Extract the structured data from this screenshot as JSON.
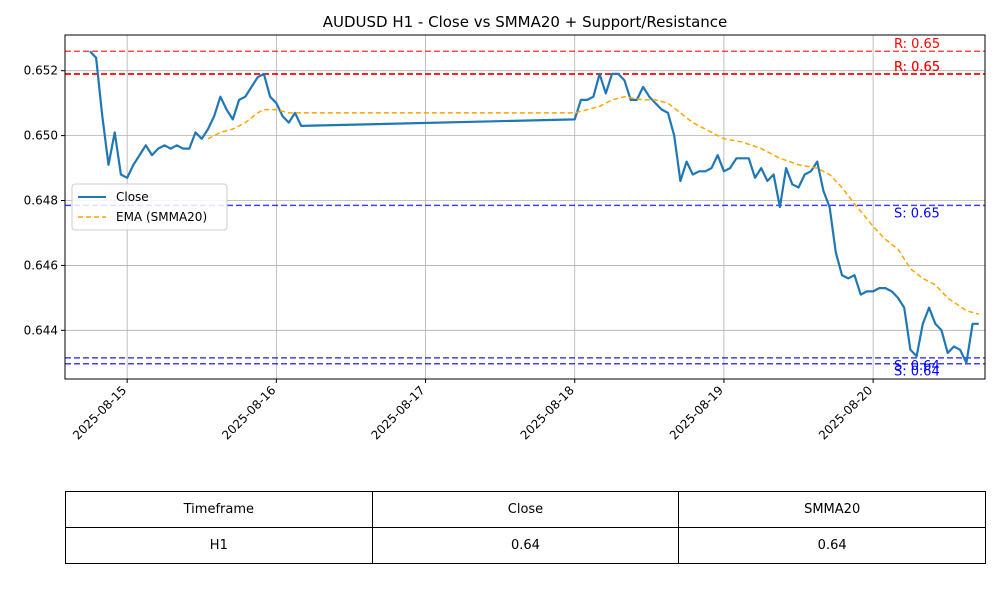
{
  "chart_data": {
    "type": "line",
    "title": "AUDUSD H1 - Close vs SMMA20 + Support/Resistance",
    "xlabel": "",
    "ylabel": "",
    "x_ticks": [
      "2025-08-15",
      "2025-08-16",
      "2025-08-17",
      "2025-08-18",
      "2025-08-19",
      "2025-08-20"
    ],
    "y_ticks": [
      "0.644",
      "0.646",
      "0.648",
      "0.650",
      "0.652"
    ],
    "xlim": [
      "2025-08-14 14:00",
      "2025-08-20 18:00"
    ],
    "ylim": [
      0.6425,
      0.6531
    ],
    "grid": true,
    "legend_placement": "center-left",
    "series": [
      {
        "name": "Close",
        "color": "#1f77b4",
        "style": "solid",
        "points": [
          [
            "2025-08-14 18:00",
            0.6526
          ],
          [
            "2025-08-14 19:00",
            0.6524
          ],
          [
            "2025-08-14 20:00",
            0.6506
          ],
          [
            "2025-08-14 21:00",
            0.6491
          ],
          [
            "2025-08-14 22:00",
            0.6501
          ],
          [
            "2025-08-14 23:00",
            0.6488
          ],
          [
            "2025-08-15 00:00",
            0.6487
          ],
          [
            "2025-08-15 01:00",
            0.6491
          ],
          [
            "2025-08-15 02:00",
            0.6494
          ],
          [
            "2025-08-15 03:00",
            0.6497
          ],
          [
            "2025-08-15 04:00",
            0.6494
          ],
          [
            "2025-08-15 05:00",
            0.6496
          ],
          [
            "2025-08-15 06:00",
            0.6497
          ],
          [
            "2025-08-15 07:00",
            0.6496
          ],
          [
            "2025-08-15 08:00",
            0.6497
          ],
          [
            "2025-08-15 09:00",
            0.6496
          ],
          [
            "2025-08-15 10:00",
            0.6496
          ],
          [
            "2025-08-15 11:00",
            0.6501
          ],
          [
            "2025-08-15 12:00",
            0.6499
          ],
          [
            "2025-08-15 13:00",
            0.6502
          ],
          [
            "2025-08-15 14:00",
            0.6506
          ],
          [
            "2025-08-15 15:00",
            0.6512
          ],
          [
            "2025-08-15 16:00",
            0.6508
          ],
          [
            "2025-08-15 17:00",
            0.6505
          ],
          [
            "2025-08-15 18:00",
            0.6511
          ],
          [
            "2025-08-15 19:00",
            0.6512
          ],
          [
            "2025-08-15 20:00",
            0.6515
          ],
          [
            "2025-08-15 21:00",
            0.6518
          ],
          [
            "2025-08-15 22:00",
            0.6519
          ],
          [
            "2025-08-15 23:00",
            0.6512
          ],
          [
            "2025-08-16 00:00",
            0.651
          ],
          [
            "2025-08-16 01:00",
            0.6506
          ],
          [
            "2025-08-16 02:00",
            0.6504
          ],
          [
            "2025-08-16 03:00",
            0.6507
          ],
          [
            "2025-08-16 04:00",
            0.6503
          ],
          [
            "2025-08-18 00:00",
            0.6505
          ],
          [
            "2025-08-18 01:00",
            0.6511
          ],
          [
            "2025-08-18 02:00",
            0.6511
          ],
          [
            "2025-08-18 03:00",
            0.6512
          ],
          [
            "2025-08-18 04:00",
            0.6519
          ],
          [
            "2025-08-18 05:00",
            0.6513
          ],
          [
            "2025-08-18 06:00",
            0.6519
          ],
          [
            "2025-08-18 07:00",
            0.6519
          ],
          [
            "2025-08-18 08:00",
            0.6517
          ],
          [
            "2025-08-18 09:00",
            0.6511
          ],
          [
            "2025-08-18 10:00",
            0.6511
          ],
          [
            "2025-08-18 11:00",
            0.6515
          ],
          [
            "2025-08-18 12:00",
            0.6512
          ],
          [
            "2025-08-18 13:00",
            0.651
          ],
          [
            "2025-08-18 14:00",
            0.6508
          ],
          [
            "2025-08-18 15:00",
            0.6507
          ],
          [
            "2025-08-18 16:00",
            0.65
          ],
          [
            "2025-08-18 17:00",
            0.6486
          ],
          [
            "2025-08-18 18:00",
            0.6492
          ],
          [
            "2025-08-18 19:00",
            0.6488
          ],
          [
            "2025-08-18 20:00",
            0.6489
          ],
          [
            "2025-08-18 21:00",
            0.6489
          ],
          [
            "2025-08-18 22:00",
            0.649
          ],
          [
            "2025-08-18 23:00",
            0.6494
          ],
          [
            "2025-08-19 00:00",
            0.6489
          ],
          [
            "2025-08-19 01:00",
            0.649
          ],
          [
            "2025-08-19 02:00",
            0.6493
          ],
          [
            "2025-08-19 03:00",
            0.6493
          ],
          [
            "2025-08-19 04:00",
            0.6493
          ],
          [
            "2025-08-19 05:00",
            0.6487
          ],
          [
            "2025-08-19 06:00",
            0.649
          ],
          [
            "2025-08-19 07:00",
            0.6486
          ],
          [
            "2025-08-19 08:00",
            0.6488
          ],
          [
            "2025-08-19 09:00",
            0.6478
          ],
          [
            "2025-08-19 10:00",
            0.649
          ],
          [
            "2025-08-19 11:00",
            0.6485
          ],
          [
            "2025-08-19 12:00",
            0.6484
          ],
          [
            "2025-08-19 13:00",
            0.6488
          ],
          [
            "2025-08-19 14:00",
            0.6489
          ],
          [
            "2025-08-19 15:00",
            0.6492
          ],
          [
            "2025-08-19 16:00",
            0.6483
          ],
          [
            "2025-08-19 17:00",
            0.6478
          ],
          [
            "2025-08-19 18:00",
            0.6464
          ],
          [
            "2025-08-19 19:00",
            0.6457
          ],
          [
            "2025-08-19 20:00",
            0.6456
          ],
          [
            "2025-08-19 21:00",
            0.6457
          ],
          [
            "2025-08-19 22:00",
            0.6451
          ],
          [
            "2025-08-19 23:00",
            0.6452
          ],
          [
            "2025-08-20 00:00",
            0.6452
          ],
          [
            "2025-08-20 01:00",
            0.6453
          ],
          [
            "2025-08-20 02:00",
            0.6453
          ],
          [
            "2025-08-20 03:00",
            0.6452
          ],
          [
            "2025-08-20 04:00",
            0.645
          ],
          [
            "2025-08-20 05:00",
            0.6447
          ],
          [
            "2025-08-20 06:00",
            0.6434
          ],
          [
            "2025-08-20 07:00",
            0.6432
          ],
          [
            "2025-08-20 08:00",
            0.6442
          ],
          [
            "2025-08-20 09:00",
            0.6447
          ],
          [
            "2025-08-20 10:00",
            0.6442
          ],
          [
            "2025-08-20 11:00",
            0.644
          ],
          [
            "2025-08-20 12:00",
            0.6433
          ],
          [
            "2025-08-20 13:00",
            0.6435
          ],
          [
            "2025-08-20 14:00",
            0.6434
          ],
          [
            "2025-08-20 15:00",
            0.643
          ],
          [
            "2025-08-20 16:00",
            0.6442
          ],
          [
            "2025-08-20 17:00",
            0.6442
          ]
        ]
      },
      {
        "name": "EMA (SMMA20)",
        "color": "#ffa500",
        "style": "dashed",
        "points": [
          [
            "2025-08-15 13:00",
            0.6499
          ],
          [
            "2025-08-15 14:00",
            0.65
          ],
          [
            "2025-08-15 15:00",
            0.6501
          ],
          [
            "2025-08-15 17:00",
            0.6502
          ],
          [
            "2025-08-15 19:00",
            0.6504
          ],
          [
            "2025-08-15 21:00",
            0.6507
          ],
          [
            "2025-08-15 22:00",
            0.6508
          ],
          [
            "2025-08-16 00:00",
            0.6508
          ],
          [
            "2025-08-16 02:00",
            0.6507
          ],
          [
            "2025-08-16 04:00",
            0.6507
          ],
          [
            "2025-08-18 00:00",
            0.6507
          ],
          [
            "2025-08-18 02:00",
            0.6508
          ],
          [
            "2025-08-18 04:00",
            0.6509
          ],
          [
            "2025-08-18 06:00",
            0.6511
          ],
          [
            "2025-08-18 08:00",
            0.6512
          ],
          [
            "2025-08-18 11:00",
            0.6511
          ],
          [
            "2025-08-18 13:00",
            0.6511
          ],
          [
            "2025-08-18 15:00",
            0.651
          ],
          [
            "2025-08-18 17:00",
            0.6507
          ],
          [
            "2025-08-18 19:00",
            0.6504
          ],
          [
            "2025-08-18 21:00",
            0.6502
          ],
          [
            "2025-08-19 00:00",
            0.6499
          ],
          [
            "2025-08-19 03:00",
            0.6498
          ],
          [
            "2025-08-19 06:00",
            0.6496
          ],
          [
            "2025-08-19 09:00",
            0.6493
          ],
          [
            "2025-08-19 12:00",
            0.6491
          ],
          [
            "2025-08-19 15:00",
            0.649
          ],
          [
            "2025-08-19 17:00",
            0.6488
          ],
          [
            "2025-08-19 19:00",
            0.6484
          ],
          [
            "2025-08-19 21:00",
            0.6479
          ],
          [
            "2025-08-20 00:00",
            0.6472
          ],
          [
            "2025-08-20 02:00",
            0.6468
          ],
          [
            "2025-08-20 04:00",
            0.6465
          ],
          [
            "2025-08-20 06:00",
            0.6459
          ],
          [
            "2025-08-20 08:00",
            0.6456
          ],
          [
            "2025-08-20 10:00",
            0.6454
          ],
          [
            "2025-08-20 12:00",
            0.645
          ],
          [
            "2025-08-20 15:00",
            0.6446
          ],
          [
            "2025-08-20 17:00",
            0.6445
          ]
        ]
      }
    ],
    "resistance_lines": [
      {
        "value": 0.6526,
        "label": "R: 0.65",
        "color": "#ff0000",
        "opacity": 0.7
      },
      {
        "value": 0.6519,
        "label": "R: 0.65",
        "color": "#ff0000",
        "opacity": 0.95
      },
      {
        "value": 0.6519,
        "label": "R: 0.65",
        "color": "#ff0000",
        "opacity": 0.95
      }
    ],
    "support_lines": [
      {
        "value": 0.64785,
        "label": "S: 0.65",
        "color": "#0000ff",
        "opacity": 0.75
      },
      {
        "value": 0.64315,
        "label": "S: 0.64",
        "color": "#0000ff",
        "opacity": 0.75
      },
      {
        "value": 0.64297,
        "label": "S: 0.64",
        "color": "#0000ff",
        "opacity": 0.75
      }
    ]
  },
  "table": {
    "headers": [
      "Timeframe",
      "Close",
      "SMMA20"
    ],
    "rows": [
      [
        "H1",
        "0.64",
        "0.64"
      ]
    ]
  }
}
